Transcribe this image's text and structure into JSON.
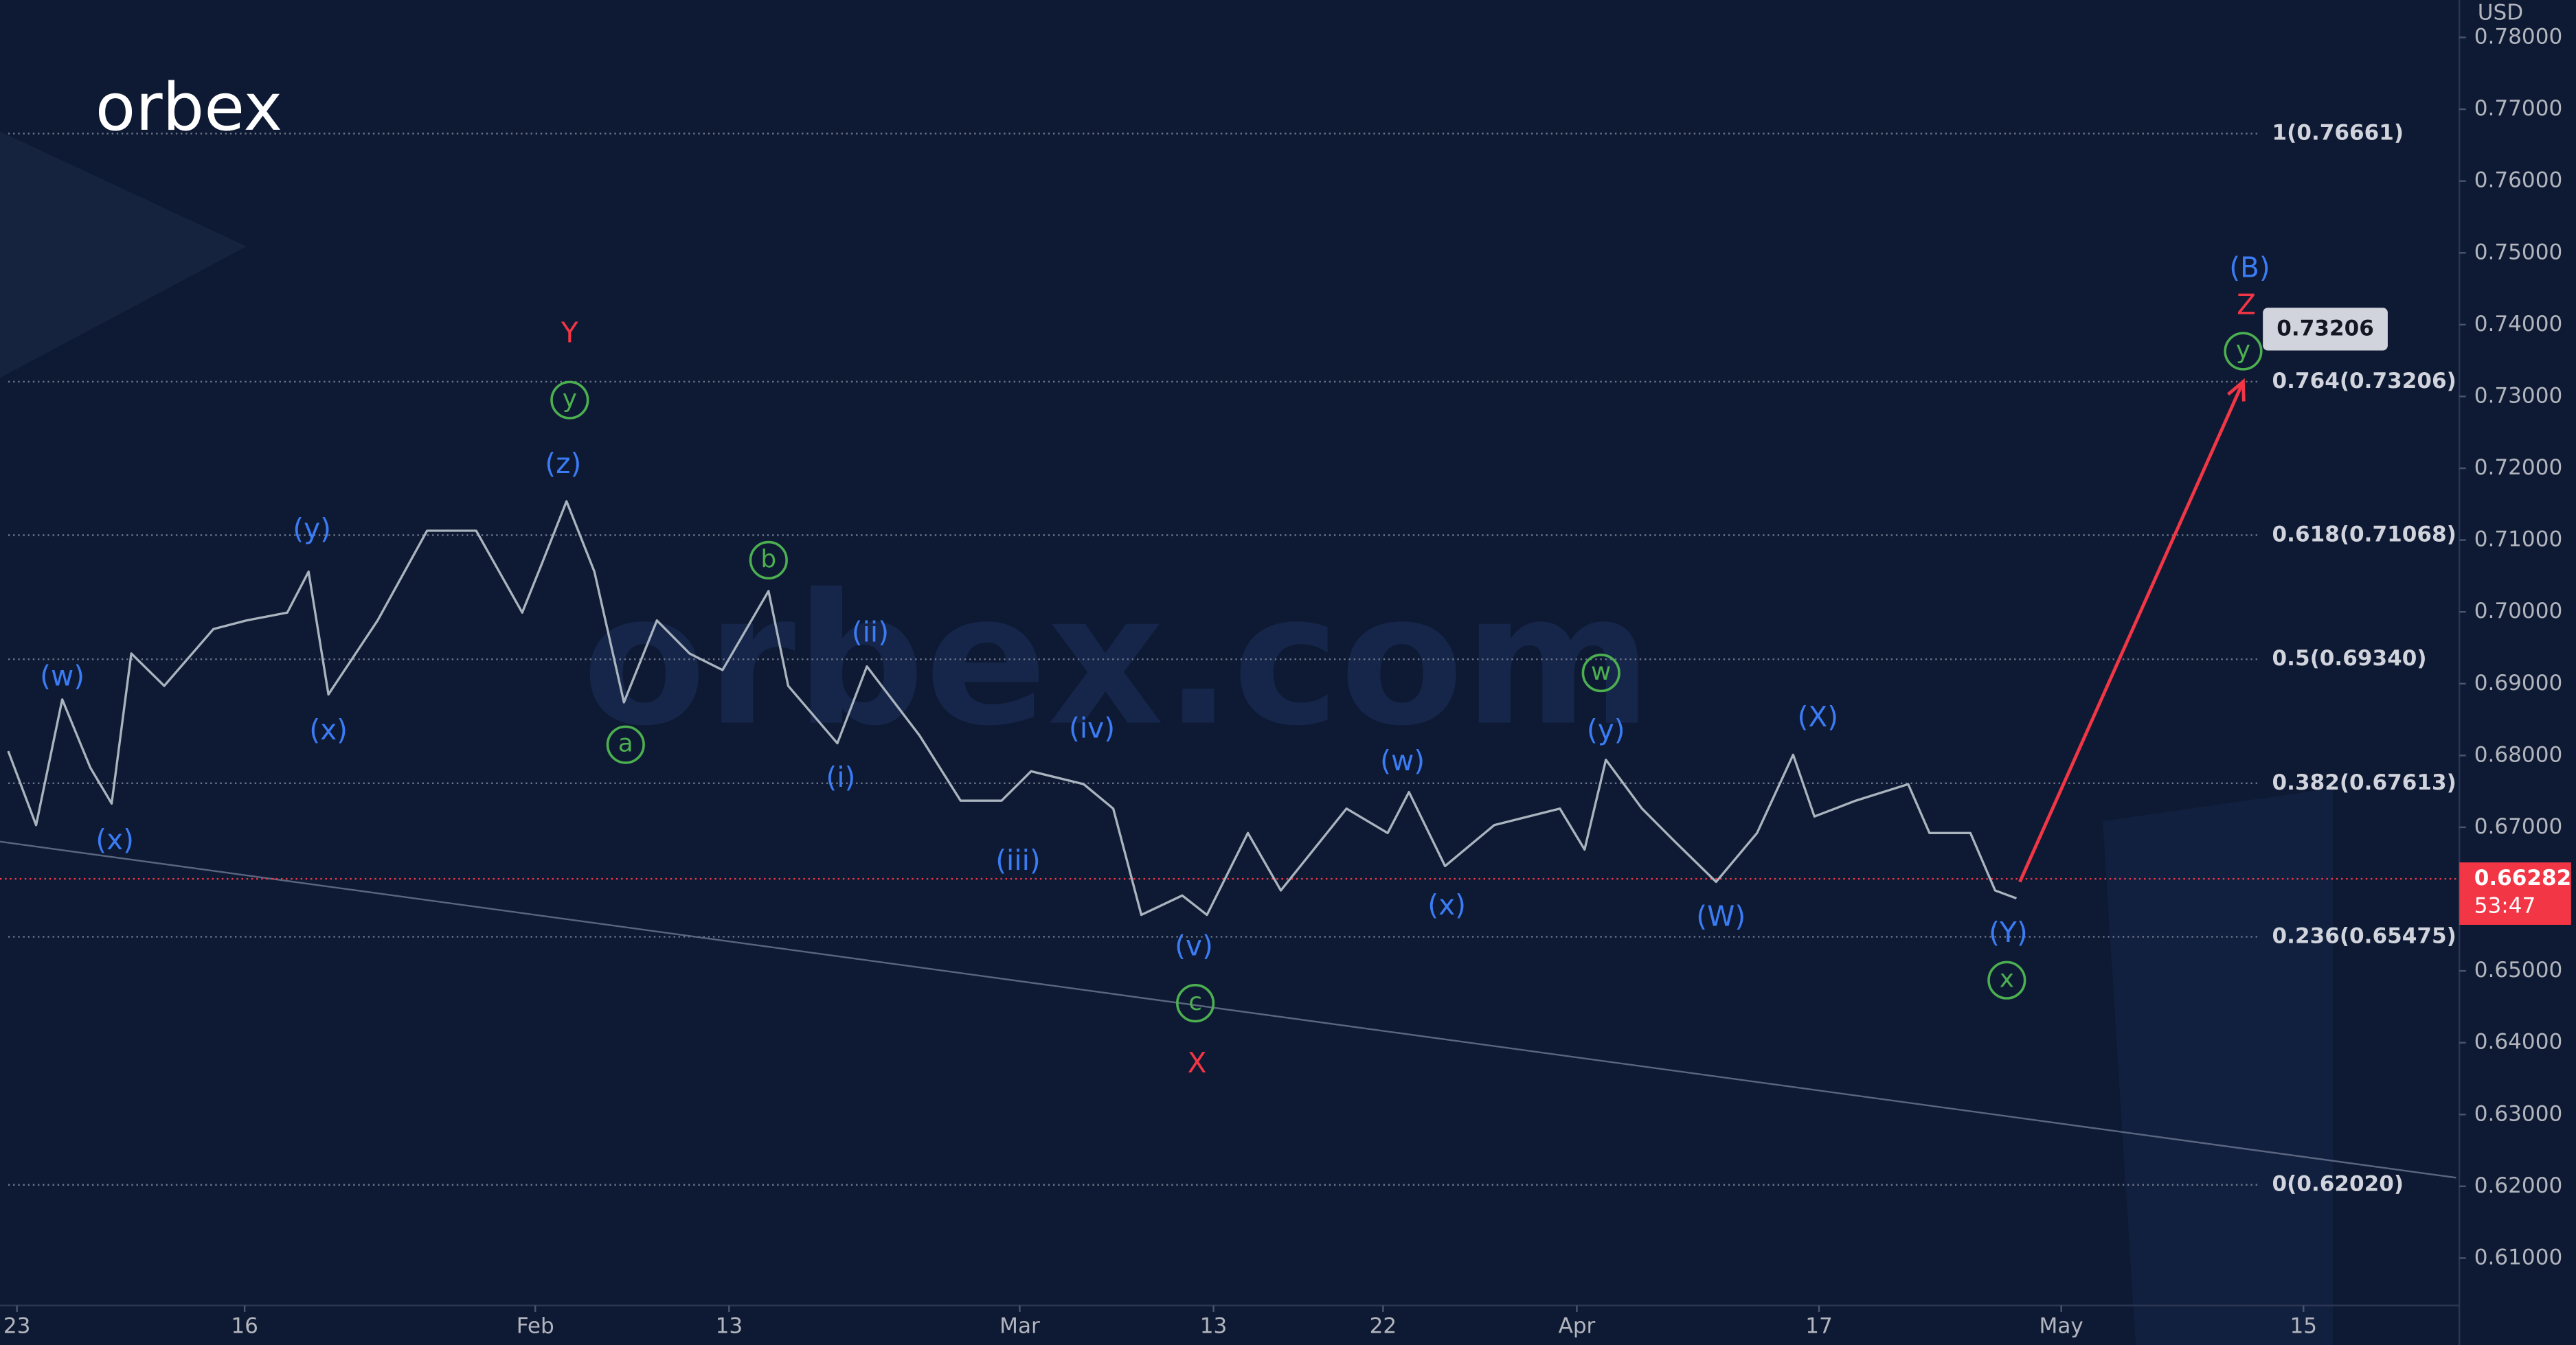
{
  "chart_data": {
    "type": "line",
    "logo": "orbex",
    "watermark": "orbex.com",
    "currency": "USD",
    "color": "#aab4bf",
    "x": [
      -9.76,
      -8.61,
      -7.53,
      -6.37,
      -5.49,
      -4.68,
      -3.32,
      -1.29,
      0.07,
      1.76,
      2.64,
      3.46,
      5.49,
      7.53,
      9.56,
      11.46,
      12.27,
      13.29,
      14.44,
      15.66,
      17.02,
      18.37,
      19.73,
      21.63,
      22.44,
      24.47,
      25.69,
      27.86,
      29.56,
      31.25,
      32.47,
      34.64,
      35.86,
      37.02,
      38.71,
      39.73,
      41.42,
      42.78,
      45.49,
      47.19,
      48.07,
      49.56,
      51.59,
      54.3,
      55.32,
      56.2,
      57.69,
      59.05,
      60.75,
      62.44,
      63.93,
      64.81,
      66.51,
      68.68,
      69.56,
      71.25,
      72.27,
      73.15
    ],
    "values": [
      0.6806,
      0.6703,
      0.6878,
      0.6783,
      0.6733,
      0.6942,
      0.6897,
      0.6976,
      0.6988,
      0.6999,
      0.7056,
      0.6885,
      0.6988,
      0.7113,
      0.7113,
      0.6999,
      0.7067,
      0.7154,
      0.7056,
      0.6874,
      0.6988,
      0.6942,
      0.6919,
      0.7029,
      0.6897,
      0.6817,
      0.6924,
      0.6828,
      0.6737,
      0.6737,
      0.6778,
      0.676,
      0.6726,
      0.6578,
      0.6605,
      0.6578,
      0.6692,
      0.6612,
      0.6726,
      0.6692,
      0.6749,
      0.6646,
      0.6703,
      0.6726,
      0.6669,
      0.6794,
      0.6726,
      0.668,
      0.6624,
      0.6692,
      0.6801,
      0.6715,
      0.6737,
      0.676,
      0.6692,
      0.6692,
      0.6612,
      0.6601
    ],
    "xlim": [
      -10.1,
      91.3
    ],
    "xticks": [
      {
        "value": -9.4,
        "label": "23"
      },
      {
        "value": 0,
        "label": "16"
      },
      {
        "value": 12,
        "label": "Feb"
      },
      {
        "value": 20,
        "label": "13"
      },
      {
        "value": 32,
        "label": "Mar"
      },
      {
        "value": 40,
        "label": "13"
      },
      {
        "value": 47,
        "label": "22"
      },
      {
        "value": 55,
        "label": "Apr"
      },
      {
        "value": 65,
        "label": "17"
      },
      {
        "value": 75,
        "label": "May"
      },
      {
        "value": 85,
        "label": "15"
      }
    ],
    "ylim": [
      0.6034,
      0.7852
    ],
    "yticks": [
      {
        "value": 0.61,
        "label": "0.61000"
      },
      {
        "value": 0.62,
        "label": "0.62000"
      },
      {
        "value": 0.63,
        "label": "0.63000"
      },
      {
        "value": 0.64,
        "label": "0.64000"
      },
      {
        "value": 0.65,
        "label": "0.65000"
      },
      {
        "value": 0.66,
        "label": "0.66000"
      },
      {
        "value": 0.67,
        "label": "0.67000"
      },
      {
        "value": 0.68,
        "label": "0.68000"
      },
      {
        "value": 0.69,
        "label": "0.69000"
      },
      {
        "value": 0.7,
        "label": "0.70000"
      },
      {
        "value": 0.71,
        "label": "0.71000"
      },
      {
        "value": 0.72,
        "label": "0.72000"
      },
      {
        "value": 0.73,
        "label": "0.73000"
      },
      {
        "value": 0.74,
        "label": "0.74000"
      },
      {
        "value": 0.75,
        "label": "0.75000"
      },
      {
        "value": 0.76,
        "label": "0.76000"
      },
      {
        "value": 0.77,
        "label": "0.77000"
      },
      {
        "value": 0.78,
        "label": "0.78000"
      }
    ],
    "fib_levels": [
      {
        "label": "1(0.76661)",
        "value": 0.76661
      },
      {
        "label": "0.764(0.73206)",
        "value": 0.73206
      },
      {
        "label": "0.618(0.71068)",
        "value": 0.71068
      },
      {
        "label": "0.5(0.69340)",
        "value": 0.6934
      },
      {
        "label": "0.382(0.67613)",
        "value": 0.67613
      },
      {
        "label": "0.236(0.65475)",
        "value": 0.65475
      },
      {
        "label": "0(0.62020)",
        "value": 0.6202
      }
    ],
    "wave_labels": [
      {
        "text": "(w)",
        "color": "#3b7cf5",
        "circled": false,
        "x": -7.53,
        "y": 0.6908
      },
      {
        "text": "(x)",
        "color": "#3b7cf5",
        "circled": false,
        "x": -5.36,
        "y": 0.668
      },
      {
        "text": "(y)",
        "color": "#3b7cf5",
        "circled": false,
        "x": 2.78,
        "y": 0.7113
      },
      {
        "text": "(x)",
        "color": "#3b7cf5",
        "circled": false,
        "x": 3.46,
        "y": 0.6833
      },
      {
        "text": "Y",
        "color": "#f23645",
        "circled": false,
        "x": 13.42,
        "y": 0.7386
      },
      {
        "text": "y",
        "color": "#4caf50",
        "circled": true,
        "x": 13.42,
        "y": 0.7295
      },
      {
        "text": "(z)",
        "color": "#3b7cf5",
        "circled": false,
        "x": 13.15,
        "y": 0.7204
      },
      {
        "text": "b",
        "color": "#4caf50",
        "circled": true,
        "x": 21.63,
        "y": 0.7072
      },
      {
        "text": "a",
        "color": "#4caf50",
        "circled": true,
        "x": 15.73,
        "y": 0.6815
      },
      {
        "text": "(ii)",
        "color": "#3b7cf5",
        "circled": false,
        "x": 25.83,
        "y": 0.6969
      },
      {
        "text": "(i)",
        "color": "#3b7cf5",
        "circled": false,
        "x": 24.61,
        "y": 0.6767
      },
      {
        "text": "(iv)",
        "color": "#3b7cf5",
        "circled": false,
        "x": 34.98,
        "y": 0.6835
      },
      {
        "text": "(iii)",
        "color": "#3b7cf5",
        "circled": false,
        "x": 31.93,
        "y": 0.6651
      },
      {
        "text": "(v)",
        "color": "#3b7cf5",
        "circled": false,
        "x": 39.19,
        "y": 0.6532
      },
      {
        "text": "c",
        "color": "#4caf50",
        "circled": true,
        "x": 39.25,
        "y": 0.6455
      },
      {
        "text": "X",
        "color": "#f23645",
        "circled": false,
        "x": 39.32,
        "y": 0.6369
      },
      {
        "text": "(w)",
        "color": "#3b7cf5",
        "circled": false,
        "x": 47.8,
        "y": 0.679
      },
      {
        "text": "(x)",
        "color": "#3b7cf5",
        "circled": false,
        "x": 49.63,
        "y": 0.6589
      },
      {
        "text": "w",
        "color": "#4caf50",
        "circled": true,
        "x": 56.0,
        "y": 0.6915
      },
      {
        "text": "(y)",
        "color": "#3b7cf5",
        "circled": false,
        "x": 56.2,
        "y": 0.6833
      },
      {
        "text": "(X)",
        "color": "#3b7cf5",
        "circled": false,
        "x": 64.95,
        "y": 0.6851
      },
      {
        "text": "(W)",
        "color": "#3b7cf5",
        "circled": false,
        "x": 60.95,
        "y": 0.6573
      },
      {
        "text": "(Y)",
        "color": "#3b7cf5",
        "circled": false,
        "x": 72.81,
        "y": 0.6551
      },
      {
        "text": "x",
        "color": "#4caf50",
        "circled": true,
        "x": 72.75,
        "y": 0.6487
      },
      {
        "text": "(B)",
        "color": "#3b7cf5",
        "circled": false,
        "x": 82.78,
        "y": 0.7477
      },
      {
        "text": "Z",
        "color": "#f23645",
        "circled": false,
        "x": 82.64,
        "y": 0.7425
      },
      {
        "text": "y",
        "color": "#4caf50",
        "circled": true,
        "x": 82.51,
        "y": 0.7363
      }
    ],
    "trend_line": {
      "x": [
        -10.1,
        91.3
      ],
      "y": [
        0.668,
        0.6212
      ]
    },
    "target": {
      "x": [
        73.29,
        82.51
      ],
      "y": [
        0.6624,
        0.73206
      ],
      "color": "#f23645"
    },
    "last_price": {
      "value": 0.66282,
      "countdown": "53:47",
      "color": "#f23645"
    }
  }
}
